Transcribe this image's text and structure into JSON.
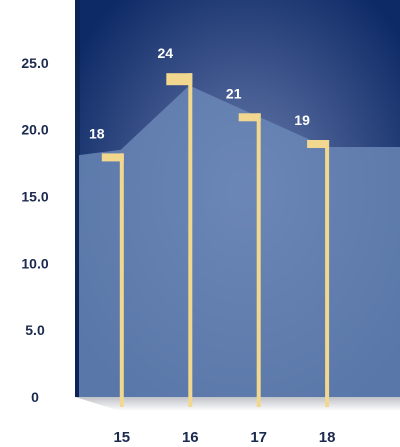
{
  "chart_data": {
    "type": "area",
    "title": "",
    "xlabel": "",
    "ylabel": "",
    "x": [
      15,
      16,
      17,
      18
    ],
    "y_tick_labels": [
      "0",
      "5.0",
      "10.0",
      "15.0",
      "20.0",
      "25.0"
    ],
    "x_tick_labels": [
      "15",
      "16",
      "17",
      "18"
    ],
    "series": [
      {
        "values": [
          18,
          24,
          21,
          19
        ],
        "data_labels": [
          "18",
          "24",
          "21",
          "19"
        ]
      }
    ],
    "area_profile": {
      "x": [
        14.33,
        15,
        16,
        17,
        18,
        19.08
      ],
      "y": [
        18.1,
        18.5,
        23.3,
        21.0,
        18.7,
        18.7
      ]
    },
    "xlim": [
      14.33,
      19.08
    ],
    "ylim": [
      0,
      29.7
    ],
    "grid": false,
    "legend": "none",
    "colors": {
      "background_center": "#6b7eaf",
      "background_edge": "#0e2a66",
      "area_fill": "#6b89b8",
      "marker": "#f2d88f",
      "text_dark": "#1b2a4e",
      "text_light": "#ffffff"
    }
  }
}
